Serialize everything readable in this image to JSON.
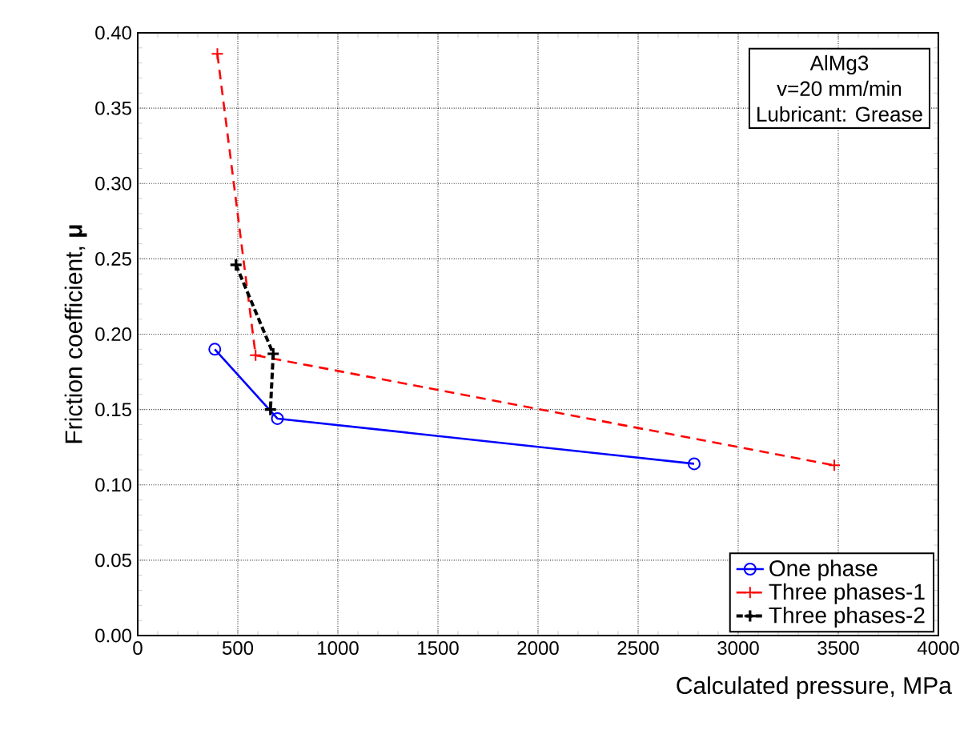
{
  "chart_data": {
    "type": "line",
    "xlabel": "Calculated pressure, MPa",
    "ylabel": "Friction coefficient, **μ**",
    "xlim": [
      0,
      4000
    ],
    "xticks": [
      0,
      500,
      1000,
      1500,
      2000,
      2500,
      3000,
      3500,
      4000
    ],
    "ylim": [
      0,
      0.4
    ],
    "yticks": [
      {
        "value": 0,
        "label": "0.00"
      },
      {
        "value": 0.05,
        "label": "0.05"
      },
      {
        "value": 0.1,
        "label": "0.10"
      },
      {
        "value": 0.15,
        "label": "0.15"
      },
      {
        "value": 0.2,
        "label": "0.20"
      },
      {
        "value": 0.25,
        "label": "0.25"
      },
      {
        "value": 0.3,
        "label": "0.30"
      },
      {
        "value": 0.35,
        "label": "0.35"
      },
      {
        "value": 0.4,
        "label": "0.40"
      }
    ],
    "grid": true,
    "legend": "bottom right",
    "annotations": [
      "AlMg3",
      "v=20 mm/min",
      "Lubricant: Grease"
    ],
    "series": [
      {
        "name": "One phase",
        "color": "#0000ff",
        "marker": "circle",
        "line_style": "solid",
        "x": [
          385,
          698,
          2780
        ],
        "values": [
          0.19,
          0.144,
          0.114
        ]
      },
      {
        "name": "Three phases-1",
        "color": "#ff0000",
        "marker": "cross",
        "line_style": "dashed",
        "x": [
          398,
          589,
          3480
        ],
        "values": [
          0.386,
          0.186,
          0.113
        ]
      },
      {
        "name": "Three phases-2",
        "color": "#000000",
        "marker": "cross",
        "line_style": "dashed",
        "x": [
          491,
          677,
          663
        ],
        "values": [
          0.246,
          0.187,
          0.15
        ]
      }
    ]
  }
}
